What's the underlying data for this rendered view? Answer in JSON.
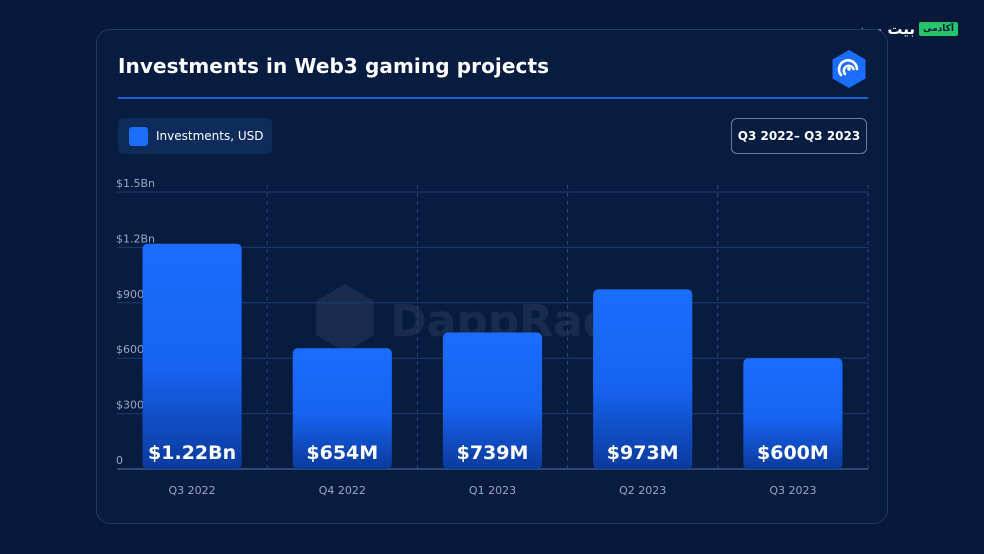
{
  "brand": {
    "name": "بیت پین",
    "badge": "آکادمی"
  },
  "watermark": "DappRadar",
  "legend": {
    "label": "Investments, USD",
    "color": "#1a6dff"
  },
  "range_label": "Q3 2022– Q3 2023",
  "chart_data": {
    "type": "bar",
    "title": "Investments in Web3 gaming projects",
    "categories": [
      "Q3 2022",
      "Q4 2022",
      "Q1 2023",
      "Q2 2023",
      "Q3 2023"
    ],
    "series": [
      {
        "name": "Investments, USD",
        "values": [
          1220,
          654,
          739,
          973,
          600
        ]
      }
    ],
    "data_labels": [
      "$1.22Bn",
      "$654M",
      "$739M",
      "$973M",
      "$600M"
    ],
    "y_ticks": [
      0,
      300,
      600,
      900,
      1200,
      1500
    ],
    "y_tick_labels": [
      "0",
      "$300M",
      "$600M",
      "$900M",
      "$1.2Bn",
      "$1.5Bn"
    ],
    "ylim": [
      0,
      1500
    ],
    "unit": "USD millions",
    "grid": true,
    "legend_position": "top-left"
  }
}
